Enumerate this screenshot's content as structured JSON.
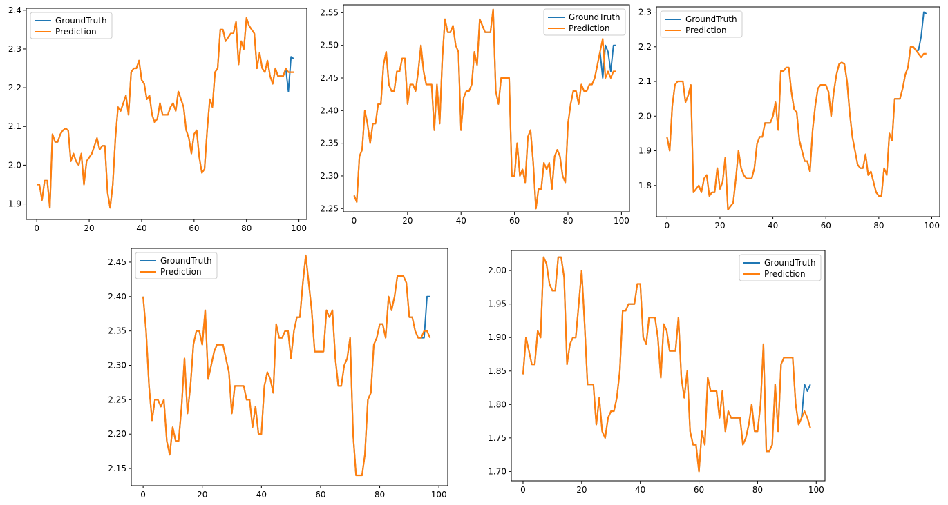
{
  "colors": {
    "ground_truth": "#1f77b4",
    "prediction": "#ff7f0e"
  },
  "chart_data": [
    {
      "type": "line",
      "legend": [
        "GroundTruth",
        "Prediction"
      ],
      "legend_position": "upper-left",
      "xlim": [
        -4,
        103
      ],
      "ylim": [
        1.86,
        2.405
      ],
      "xticks": [
        0,
        20,
        40,
        60,
        80,
        100
      ],
      "yticks": [
        1.9,
        2.0,
        2.1,
        2.2,
        2.3,
        2.4
      ],
      "ytick_labels": [
        "1.9",
        "2.0",
        "2.1",
        "2.2",
        "2.3",
        "2.4"
      ],
      "ground_truth": [
        1.95,
        1.95,
        1.91,
        1.96,
        1.96,
        1.89,
        2.08,
        2.06,
        2.06,
        2.08,
        2.09,
        2.095,
        2.09,
        2.01,
        2.03,
        2.01,
        2.0,
        2.03,
        1.95,
        2.01,
        2.02,
        2.03,
        2.05,
        2.07,
        2.04,
        2.05,
        2.05,
        1.93,
        1.89,
        1.95,
        2.07,
        2.15,
        2.14,
        2.16,
        2.18,
        2.13,
        2.24,
        2.25,
        2.25,
        2.27,
        2.22,
        2.21,
        2.17,
        2.18,
        2.13,
        2.11,
        2.12,
        2.16,
        2.13,
        2.13,
        2.13,
        2.15,
        2.16,
        2.14,
        2.19,
        2.17,
        2.15,
        2.09,
        2.07,
        2.03,
        2.08,
        2.09,
        2.02,
        1.98,
        1.99,
        2.09,
        2.17,
        2.15,
        2.24,
        2.25,
        2.35,
        2.35,
        2.32,
        2.33,
        2.34,
        2.34,
        2.37,
        2.26,
        2.32,
        2.3,
        2.38,
        2.36,
        2.35,
        2.34,
        2.25,
        2.29,
        2.25,
        2.24,
        2.27,
        2.23,
        2.21,
        2.25,
        2.23,
        2.23,
        2.23,
        2.25,
        2.19,
        2.28,
        2.275
      ],
      "prediction": [
        1.95,
        1.95,
        1.91,
        1.96,
        1.96,
        1.89,
        2.08,
        2.06,
        2.06,
        2.08,
        2.09,
        2.095,
        2.09,
        2.01,
        2.03,
        2.01,
        2.0,
        2.03,
        1.95,
        2.01,
        2.02,
        2.03,
        2.05,
        2.07,
        2.04,
        2.05,
        2.05,
        1.93,
        1.89,
        1.95,
        2.07,
        2.15,
        2.14,
        2.16,
        2.18,
        2.13,
        2.24,
        2.25,
        2.25,
        2.27,
        2.22,
        2.21,
        2.17,
        2.18,
        2.13,
        2.11,
        2.12,
        2.16,
        2.13,
        2.13,
        2.13,
        2.15,
        2.16,
        2.14,
        2.19,
        2.17,
        2.15,
        2.09,
        2.07,
        2.03,
        2.08,
        2.09,
        2.02,
        1.98,
        1.99,
        2.09,
        2.17,
        2.15,
        2.24,
        2.25,
        2.35,
        2.35,
        2.32,
        2.33,
        2.34,
        2.34,
        2.37,
        2.26,
        2.32,
        2.3,
        2.38,
        2.36,
        2.35,
        2.34,
        2.25,
        2.29,
        2.25,
        2.24,
        2.27,
        2.23,
        2.21,
        2.25,
        2.23,
        2.23,
        2.23,
        2.25,
        2.24,
        2.24,
        2.24
      ]
    },
    {
      "type": "line",
      "legend": [
        "GroundTruth",
        "Prediction"
      ],
      "legend_position": "upper-right",
      "xlim": [
        -4,
        103
      ],
      "ylim": [
        2.245,
        2.562
      ],
      "xticks": [
        0,
        20,
        40,
        60,
        80,
        100
      ],
      "yticks": [
        2.25,
        2.3,
        2.35,
        2.4,
        2.45,
        2.5,
        2.55
      ],
      "ytick_labels": [
        "2.25",
        "2.30",
        "2.35",
        "2.40",
        "2.45",
        "2.50",
        "2.55"
      ],
      "ground_truth": [
        2.27,
        2.26,
        2.33,
        2.34,
        2.4,
        2.38,
        2.35,
        2.38,
        2.38,
        2.41,
        2.41,
        2.47,
        2.49,
        2.44,
        2.43,
        2.43,
        2.46,
        2.46,
        2.48,
        2.48,
        2.41,
        2.44,
        2.44,
        2.43,
        2.46,
        2.5,
        2.46,
        2.44,
        2.44,
        2.44,
        2.37,
        2.44,
        2.38,
        2.48,
        2.54,
        2.52,
        2.52,
        2.53,
        2.5,
        2.49,
        2.37,
        2.42,
        2.43,
        2.43,
        2.44,
        2.49,
        2.47,
        2.54,
        2.53,
        2.52,
        2.52,
        2.52,
        2.555,
        2.43,
        2.41,
        2.45,
        2.45,
        2.45,
        2.45,
        2.3,
        2.3,
        2.35,
        2.3,
        2.31,
        2.29,
        2.36,
        2.37,
        2.32,
        2.25,
        2.28,
        2.28,
        2.32,
        2.31,
        2.32,
        2.28,
        2.33,
        2.34,
        2.33,
        2.3,
        2.29,
        2.38,
        2.41,
        2.43,
        2.43,
        2.41,
        2.44,
        2.43,
        2.43,
        2.44,
        2.44,
        2.45,
        2.47,
        2.49,
        2.45,
        2.5,
        2.49,
        2.46,
        2.5,
        2.5
      ],
      "prediction": [
        2.27,
        2.26,
        2.33,
        2.34,
        2.4,
        2.38,
        2.35,
        2.38,
        2.38,
        2.41,
        2.41,
        2.47,
        2.49,
        2.44,
        2.43,
        2.43,
        2.46,
        2.46,
        2.48,
        2.48,
        2.41,
        2.44,
        2.44,
        2.43,
        2.46,
        2.5,
        2.46,
        2.44,
        2.44,
        2.44,
        2.37,
        2.44,
        2.38,
        2.48,
        2.54,
        2.52,
        2.52,
        2.53,
        2.5,
        2.49,
        2.37,
        2.42,
        2.43,
        2.43,
        2.44,
        2.49,
        2.47,
        2.54,
        2.53,
        2.52,
        2.52,
        2.52,
        2.555,
        2.43,
        2.41,
        2.45,
        2.45,
        2.45,
        2.45,
        2.3,
        2.3,
        2.35,
        2.3,
        2.31,
        2.29,
        2.36,
        2.37,
        2.32,
        2.25,
        2.28,
        2.28,
        2.32,
        2.31,
        2.32,
        2.28,
        2.33,
        2.34,
        2.33,
        2.3,
        2.29,
        2.38,
        2.41,
        2.43,
        2.43,
        2.41,
        2.44,
        2.43,
        2.43,
        2.44,
        2.44,
        2.45,
        2.47,
        2.49,
        2.51,
        2.45,
        2.46,
        2.45,
        2.46,
        2.46
      ]
    },
    {
      "type": "line",
      "legend": [
        "GroundTruth",
        "Prediction"
      ],
      "legend_position": "upper-left",
      "xlim": [
        -4,
        103
      ],
      "ylim": [
        1.71,
        2.315
      ],
      "xticks": [
        0,
        20,
        40,
        60,
        80,
        100
      ],
      "yticks": [
        1.8,
        1.9,
        2.0,
        2.1,
        2.2,
        2.3
      ],
      "ytick_labels": [
        "1.8",
        "1.9",
        "2.0",
        "2.1",
        "2.2",
        "2.3"
      ],
      "ground_truth": [
        1.94,
        1.9,
        2.03,
        2.09,
        2.1,
        2.1,
        2.1,
        2.04,
        2.06,
        2.09,
        1.78,
        1.79,
        1.8,
        1.78,
        1.82,
        1.83,
        1.77,
        1.78,
        1.78,
        1.85,
        1.79,
        1.81,
        1.88,
        1.73,
        1.74,
        1.75,
        1.82,
        1.9,
        1.85,
        1.83,
        1.82,
        1.82,
        1.82,
        1.85,
        1.92,
        1.94,
        1.94,
        1.98,
        1.98,
        1.98,
        2.0,
        2.04,
        1.96,
        2.13,
        2.13,
        2.14,
        2.14,
        2.07,
        2.02,
        2.01,
        1.93,
        1.9,
        1.87,
        1.87,
        1.84,
        1.96,
        2.03,
        2.08,
        2.09,
        2.09,
        2.09,
        2.07,
        2.0,
        2.07,
        2.12,
        2.15,
        2.155,
        2.15,
        2.1,
        2.01,
        1.94,
        1.9,
        1.86,
        1.85,
        1.85,
        1.89,
        1.83,
        1.84,
        1.81,
        1.78,
        1.77,
        1.77,
        1.85,
        1.83,
        1.95,
        1.93,
        2.05,
        2.05,
        2.05,
        2.08,
        2.12,
        2.14,
        2.2,
        2.2,
        2.19,
        2.19,
        2.23,
        2.3,
        2.295
      ],
      "prediction": [
        1.94,
        1.9,
        2.03,
        2.09,
        2.1,
        2.1,
        2.1,
        2.04,
        2.06,
        2.09,
        1.78,
        1.79,
        1.8,
        1.78,
        1.82,
        1.83,
        1.77,
        1.78,
        1.78,
        1.85,
        1.79,
        1.81,
        1.88,
        1.73,
        1.74,
        1.75,
        1.82,
        1.9,
        1.85,
        1.83,
        1.82,
        1.82,
        1.82,
        1.85,
        1.92,
        1.94,
        1.94,
        1.98,
        1.98,
        1.98,
        2.0,
        2.04,
        1.96,
        2.13,
        2.13,
        2.14,
        2.14,
        2.07,
        2.02,
        2.01,
        1.93,
        1.9,
        1.87,
        1.87,
        1.84,
        1.96,
        2.03,
        2.08,
        2.09,
        2.09,
        2.09,
        2.07,
        2.0,
        2.07,
        2.12,
        2.15,
        2.155,
        2.15,
        2.1,
        2.01,
        1.94,
        1.9,
        1.86,
        1.85,
        1.85,
        1.89,
        1.83,
        1.84,
        1.81,
        1.78,
        1.77,
        1.77,
        1.85,
        1.83,
        1.95,
        1.93,
        2.05,
        2.05,
        2.05,
        2.08,
        2.12,
        2.14,
        2.2,
        2.2,
        2.19,
        2.18,
        2.17,
        2.18,
        2.18
      ]
    },
    {
      "type": "line",
      "legend": [
        "GroundTruth",
        "Prediction"
      ],
      "legend_position": "upper-left",
      "xlim": [
        -4,
        103
      ],
      "ylim": [
        2.125,
        2.47
      ],
      "xticks": [
        0,
        20,
        40,
        60,
        80,
        100
      ],
      "yticks": [
        2.15,
        2.2,
        2.25,
        2.3,
        2.35,
        2.4,
        2.45
      ],
      "ytick_labels": [
        "2.15",
        "2.20",
        "2.25",
        "2.30",
        "2.35",
        "2.40",
        "2.45"
      ],
      "ground_truth": [
        2.4,
        2.35,
        2.27,
        2.22,
        2.25,
        2.25,
        2.24,
        2.25,
        2.19,
        2.17,
        2.21,
        2.19,
        2.19,
        2.24,
        2.31,
        2.23,
        2.27,
        2.33,
        2.35,
        2.35,
        2.33,
        2.38,
        2.28,
        2.3,
        2.32,
        2.33,
        2.33,
        2.33,
        2.31,
        2.29,
        2.23,
        2.27,
        2.27,
        2.27,
        2.27,
        2.25,
        2.25,
        2.21,
        2.24,
        2.2,
        2.2,
        2.27,
        2.29,
        2.28,
        2.26,
        2.36,
        2.34,
        2.34,
        2.35,
        2.35,
        2.31,
        2.35,
        2.37,
        2.37,
        2.42,
        2.46,
        2.42,
        2.38,
        2.32,
        2.32,
        2.32,
        2.32,
        2.38,
        2.37,
        2.38,
        2.31,
        2.27,
        2.27,
        2.3,
        2.31,
        2.34,
        2.2,
        2.14,
        2.14,
        2.14,
        2.17,
        2.25,
        2.26,
        2.33,
        2.34,
        2.36,
        2.36,
        2.34,
        2.4,
        2.38,
        2.4,
        2.43,
        2.43,
        2.43,
        2.42,
        2.37,
        2.37,
        2.35,
        2.34,
        2.34,
        2.34,
        2.4,
        2.4
      ],
      "prediction": [
        2.4,
        2.35,
        2.27,
        2.22,
        2.25,
        2.25,
        2.24,
        2.25,
        2.19,
        2.17,
        2.21,
        2.19,
        2.19,
        2.24,
        2.31,
        2.23,
        2.27,
        2.33,
        2.35,
        2.35,
        2.33,
        2.38,
        2.28,
        2.3,
        2.32,
        2.33,
        2.33,
        2.33,
        2.31,
        2.29,
        2.23,
        2.27,
        2.27,
        2.27,
        2.27,
        2.25,
        2.25,
        2.21,
        2.24,
        2.2,
        2.2,
        2.27,
        2.29,
        2.28,
        2.26,
        2.36,
        2.34,
        2.34,
        2.35,
        2.35,
        2.31,
        2.35,
        2.37,
        2.37,
        2.42,
        2.46,
        2.42,
        2.38,
        2.32,
        2.32,
        2.32,
        2.32,
        2.38,
        2.37,
        2.38,
        2.31,
        2.27,
        2.27,
        2.3,
        2.31,
        2.34,
        2.2,
        2.14,
        2.14,
        2.14,
        2.17,
        2.25,
        2.26,
        2.33,
        2.34,
        2.36,
        2.36,
        2.34,
        2.4,
        2.38,
        2.4,
        2.43,
        2.43,
        2.43,
        2.42,
        2.37,
        2.37,
        2.35,
        2.34,
        2.34,
        2.35,
        2.35,
        2.34
      ]
    },
    {
      "type": "line",
      "legend": [
        "GroundTruth",
        "Prediction"
      ],
      "legend_position": "upper-right",
      "xlim": [
        -4,
        103
      ],
      "ylim": [
        1.686,
        2.03
      ],
      "xticks": [
        0,
        20,
        40,
        60,
        80,
        100
      ],
      "yticks": [
        1.7,
        1.75,
        1.8,
        1.85,
        1.9,
        1.95,
        2.0
      ],
      "ytick_labels": [
        "1.70",
        "1.75",
        "1.80",
        "1.85",
        "1.90",
        "1.95",
        "2.00"
      ],
      "ground_truth": [
        1.845,
        1.9,
        1.88,
        1.86,
        1.86,
        1.91,
        1.9,
        2.02,
        2.01,
        1.98,
        1.97,
        1.97,
        2.02,
        2.02,
        1.99,
        1.86,
        1.89,
        1.9,
        1.9,
        1.95,
        2.0,
        1.92,
        1.83,
        1.83,
        1.83,
        1.77,
        1.81,
        1.76,
        1.75,
        1.78,
        1.79,
        1.79,
        1.81,
        1.85,
        1.94,
        1.94,
        1.95,
        1.95,
        1.95,
        1.98,
        1.98,
        1.9,
        1.89,
        1.93,
        1.93,
        1.93,
        1.9,
        1.84,
        1.92,
        1.91,
        1.88,
        1.88,
        1.88,
        1.93,
        1.84,
        1.81,
        1.85,
        1.76,
        1.74,
        1.74,
        1.7,
        1.76,
        1.74,
        1.84,
        1.82,
        1.82,
        1.82,
        1.78,
        1.82,
        1.76,
        1.79,
        1.78,
        1.78,
        1.78,
        1.78,
        1.74,
        1.75,
        1.77,
        1.8,
        1.76,
        1.76,
        1.8,
        1.89,
        1.73,
        1.73,
        1.74,
        1.83,
        1.76,
        1.86,
        1.87,
        1.87,
        1.87,
        1.87,
        1.8,
        1.77,
        1.78,
        1.83,
        1.82,
        1.83
      ],
      "prediction": [
        1.845,
        1.9,
        1.88,
        1.86,
        1.86,
        1.91,
        1.9,
        2.02,
        2.01,
        1.98,
        1.97,
        1.97,
        2.02,
        2.02,
        1.99,
        1.86,
        1.89,
        1.9,
        1.9,
        1.95,
        2.0,
        1.92,
        1.83,
        1.83,
        1.83,
        1.77,
        1.81,
        1.76,
        1.75,
        1.78,
        1.79,
        1.79,
        1.81,
        1.85,
        1.94,
        1.94,
        1.95,
        1.95,
        1.95,
        1.98,
        1.98,
        1.9,
        1.89,
        1.93,
        1.93,
        1.93,
        1.9,
        1.84,
        1.92,
        1.91,
        1.88,
        1.88,
        1.88,
        1.93,
        1.84,
        1.81,
        1.85,
        1.76,
        1.74,
        1.74,
        1.7,
        1.76,
        1.74,
        1.84,
        1.82,
        1.82,
        1.82,
        1.78,
        1.82,
        1.76,
        1.79,
        1.78,
        1.78,
        1.78,
        1.78,
        1.74,
        1.75,
        1.77,
        1.8,
        1.76,
        1.76,
        1.8,
        1.89,
        1.73,
        1.73,
        1.74,
        1.83,
        1.76,
        1.86,
        1.87,
        1.87,
        1.87,
        1.87,
        1.8,
        1.77,
        1.78,
        1.79,
        1.78,
        1.765
      ]
    }
  ]
}
